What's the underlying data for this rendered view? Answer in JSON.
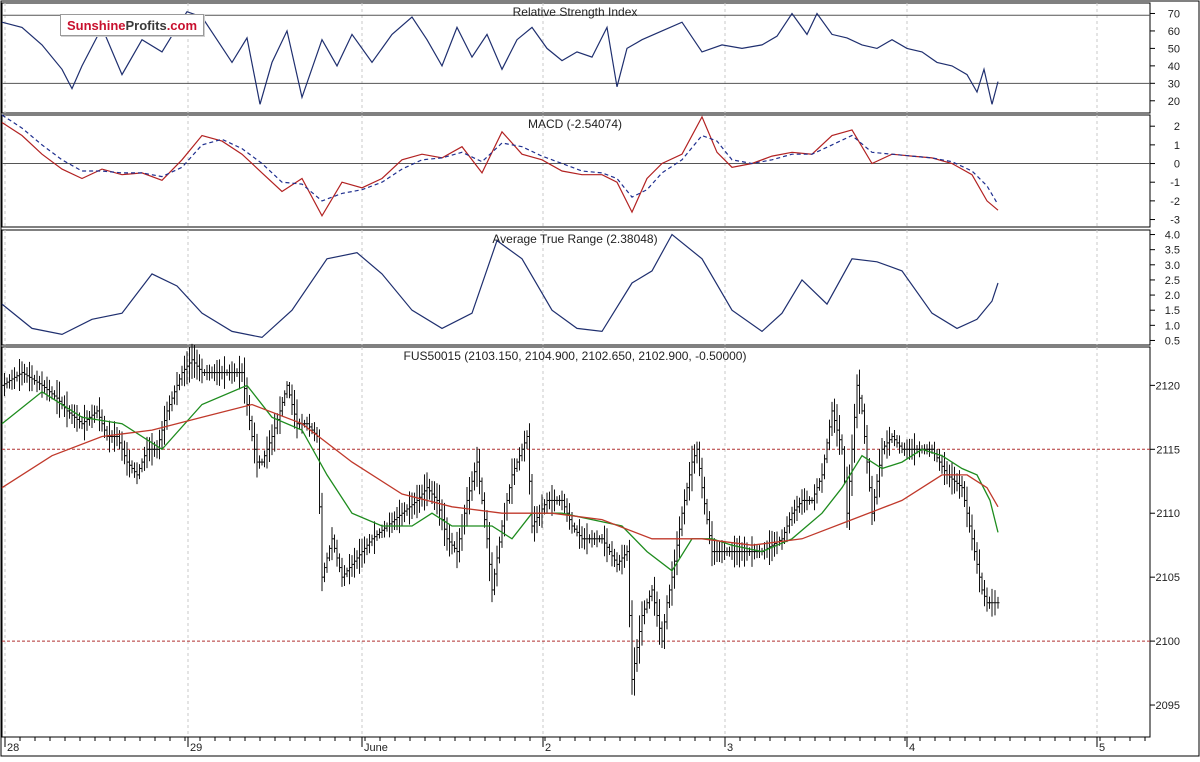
{
  "chart_data": [
    {
      "type": "line",
      "title": "Relative Strength Index",
      "ylim": [
        13,
        76
      ],
      "y_ticks": [
        "70",
        "60",
        "50",
        "40",
        "30",
        "20"
      ],
      "y_tick_values": [
        70,
        60,
        50,
        40,
        30,
        20
      ],
      "reference_lines": [
        69,
        30
      ],
      "series": [
        {
          "x": [
            0,
            20,
            40,
            60,
            70,
            80,
            100,
            120,
            140,
            160,
            175,
            185,
            200,
            215,
            230,
            245,
            258,
            270,
            285,
            300,
            320,
            335,
            350,
            370,
            390,
            410,
            425,
            440,
            455,
            470,
            485,
            500,
            515,
            530,
            545,
            560,
            575,
            590,
            605,
            615,
            625,
            640,
            660,
            680,
            700,
            720,
            740,
            760,
            775,
            790,
            805,
            815,
            830,
            845,
            860,
            875,
            890,
            905,
            920,
            935,
            950,
            965,
            975,
            982,
            990,
            996
          ],
          "values": [
            65,
            62,
            52,
            38,
            27,
            40,
            62,
            35,
            55,
            48,
            62,
            71,
            68,
            55,
            42,
            56,
            18,
            42,
            60,
            22,
            55,
            40,
            58,
            42,
            58,
            68,
            55,
            40,
            62,
            45,
            58,
            38,
            55,
            62,
            50,
            43,
            48,
            45,
            62,
            28,
            50,
            55,
            60,
            65,
            48,
            52,
            50,
            52,
            57,
            70,
            58,
            70,
            58,
            56,
            52,
            50,
            55,
            50,
            48,
            42,
            40,
            35,
            25,
            38,
            18,
            31
          ]
        }
      ]
    },
    {
      "type": "line",
      "title": "MACD (-2.54074)",
      "ylim": [
        -3.4,
        2.6
      ],
      "y_ticks": [
        "2",
        "1",
        "0",
        "-1",
        "-2",
        "-3"
      ],
      "y_tick_values": [
        2,
        1,
        0,
        -1,
        -2,
        -3
      ],
      "reference_lines": [
        0
      ],
      "series": [
        {
          "color": "#b22222",
          "x": [
            0,
            20,
            40,
            60,
            80,
            100,
            120,
            140,
            160,
            180,
            200,
            220,
            240,
            260,
            280,
            300,
            320,
            340,
            360,
            380,
            400,
            420,
            440,
            460,
            480,
            500,
            520,
            540,
            560,
            580,
            600,
            615,
            630,
            645,
            660,
            680,
            700,
            715,
            730,
            750,
            770,
            790,
            810,
            830,
            850,
            870,
            890,
            910,
            930,
            950,
            970,
            985,
            996
          ],
          "values": [
            2.2,
            1.5,
            0.5,
            -0.3,
            -0.8,
            -0.3,
            -0.6,
            -0.5,
            -0.9,
            0.2,
            1.5,
            1.2,
            0.5,
            -0.5,
            -1.5,
            -0.8,
            -2.8,
            -1.0,
            -1.3,
            -0.8,
            0.2,
            0.5,
            0.3,
            0.9,
            -0.5,
            1.7,
            0.5,
            0.2,
            -0.4,
            -0.6,
            -0.6,
            -1.0,
            -2.6,
            -0.8,
            0.0,
            0.5,
            2.5,
            0.6,
            -0.2,
            0.0,
            0.4,
            0.6,
            0.5,
            1.5,
            1.8,
            0.0,
            0.5,
            0.4,
            0.3,
            0.0,
            -0.6,
            -2.0,
            -2.5
          ]
        },
        {
          "color": "#1f2f8f",
          "x": [
            0,
            20,
            40,
            60,
            80,
            100,
            120,
            140,
            160,
            180,
            200,
            220,
            240,
            260,
            280,
            300,
            320,
            340,
            360,
            380,
            400,
            420,
            440,
            460,
            480,
            500,
            520,
            540,
            560,
            580,
            600,
            615,
            630,
            645,
            660,
            680,
            700,
            715,
            730,
            750,
            770,
            790,
            810,
            830,
            850,
            870,
            890,
            910,
            930,
            950,
            970,
            985,
            996
          ],
          "values": [
            2.6,
            1.9,
            1.0,
            0.2,
            -0.4,
            -0.4,
            -0.5,
            -0.5,
            -0.7,
            -0.2,
            1.0,
            1.3,
            0.8,
            0.0,
            -1.0,
            -1.1,
            -2.0,
            -1.6,
            -1.4,
            -1.0,
            -0.3,
            0.2,
            0.3,
            0.6,
            0.1,
            1.1,
            0.9,
            0.4,
            0.0,
            -0.4,
            -0.5,
            -0.8,
            -1.8,
            -1.4,
            -0.5,
            0.2,
            1.5,
            1.2,
            0.2,
            0.0,
            0.2,
            0.5,
            0.5,
            1.0,
            1.5,
            0.6,
            0.5,
            0.4,
            0.3,
            0.1,
            -0.4,
            -1.2,
            -2.2
          ]
        }
      ]
    },
    {
      "type": "line",
      "title": "Average True Range (2.38048)",
      "ylim": [
        0.35,
        4.15
      ],
      "y_ticks": [
        "4.0",
        "3.5",
        "3.0",
        "2.5",
        "2.0",
        "1.5",
        "1.0",
        "0.5"
      ],
      "y_tick_values": [
        4.0,
        3.5,
        3.0,
        2.5,
        2.0,
        1.5,
        1.0,
        0.5
      ],
      "series": [
        {
          "x": [
            0,
            30,
            60,
            90,
            120,
            150,
            175,
            200,
            230,
            260,
            290,
            325,
            355,
            380,
            410,
            440,
            470,
            495,
            520,
            550,
            575,
            600,
            630,
            650,
            670,
            700,
            730,
            760,
            780,
            800,
            825,
            850,
            875,
            900,
            930,
            955,
            975,
            990,
            996
          ],
          "values": [
            1.7,
            0.9,
            0.7,
            1.2,
            1.4,
            2.7,
            2.3,
            1.4,
            0.8,
            0.6,
            1.5,
            3.2,
            3.4,
            2.7,
            1.5,
            0.9,
            1.4,
            3.8,
            3.2,
            1.5,
            0.9,
            0.8,
            2.4,
            2.8,
            4.0,
            3.2,
            1.5,
            0.8,
            1.4,
            2.5,
            1.7,
            3.2,
            3.1,
            2.8,
            1.4,
            0.9,
            1.2,
            1.8,
            2.4
          ]
        }
      ]
    },
    {
      "type": "candlestick",
      "title": "FUS50015 (2103.150, 2104.900, 2102.650, 2102.900, -0.50000)",
      "ylim": [
        2092.5,
        2123
      ],
      "y_ticks": [
        "2120",
        "2115",
        "2110",
        "2105",
        "2100",
        "2095"
      ],
      "y_tick_values": [
        2120,
        2115,
        2110,
        2105,
        2100,
        2095
      ],
      "reference_lines": [
        2115,
        2100
      ],
      "x_ticks": [
        "28",
        "29",
        "June",
        "2",
        "3",
        "4",
        "5"
      ],
      "series": [
        {
          "name": "price",
          "x": [
            0,
            20,
            40,
            55,
            65,
            80,
            95,
            105,
            115,
            125,
            135,
            145,
            155,
            165,
            180,
            190,
            200,
            215,
            230,
            240,
            250,
            255,
            260,
            270,
            278,
            285,
            295,
            305,
            315,
            320,
            330,
            340,
            350,
            360,
            370,
            385,
            400,
            415,
            425,
            435,
            445,
            455,
            465,
            475,
            485,
            490,
            500,
            510,
            520,
            525,
            530,
            545,
            560,
            570,
            580,
            600,
            615,
            625,
            630,
            640,
            650,
            660,
            665,
            670,
            680,
            690,
            695,
            700,
            710,
            720,
            740,
            760,
            780,
            790,
            800,
            810,
            820,
            830,
            840,
            845,
            855,
            860,
            870,
            880,
            890,
            900,
            915,
            930,
            945,
            960,
            965,
            975,
            980,
            985,
            990,
            996
          ],
          "values": [
            2120,
            2121,
            2120,
            2119,
            2118,
            2117,
            2118,
            2116,
            2116,
            2114,
            2113,
            2115,
            2115,
            2118,
            2121,
            2122,
            2121,
            2121,
            2121,
            2121,
            2116,
            2114,
            2114,
            2116,
            2118,
            2120,
            2117,
            2117,
            2116,
            2105,
            2108,
            2105,
            2106,
            2107,
            2108,
            2109,
            2110,
            2111,
            2112,
            2111,
            2108,
            2107,
            2111,
            2114,
            2108,
            2104,
            2109,
            2113,
            2115,
            2116,
            2109,
            2111,
            2111,
            2109,
            2108,
            2108,
            2106,
            2107,
            2097,
            2102,
            2104,
            2100,
            2103,
            2105,
            2110,
            2114,
            2115,
            2112,
            2107,
            2107,
            2107,
            2107,
            2108,
            2110,
            2111,
            2111,
            2113,
            2118,
            2115,
            2110,
            2120,
            2118,
            2110,
            2115,
            2116,
            2115,
            2115,
            2115,
            2113,
            2112,
            2110,
            2106,
            2104,
            2103,
            2103,
            2103
          ]
        },
        {
          "name": "ma-fast",
          "color": "#1e8c1e",
          "x": [
            0,
            40,
            80,
            120,
            160,
            200,
            245,
            270,
            300,
            325,
            350,
            380,
            410,
            430,
            450,
            470,
            490,
            510,
            530,
            560,
            590,
            620,
            645,
            670,
            690,
            710,
            730,
            760,
            790,
            820,
            840,
            860,
            880,
            900,
            920,
            940,
            960,
            975,
            988,
            996
          ],
          "values": [
            2117,
            2119.5,
            2117.5,
            2117,
            2115,
            2118.5,
            2120,
            2117.5,
            2116.5,
            2113,
            2110,
            2109,
            2109,
            2110,
            2109,
            2109,
            2109,
            2108,
            2110,
            2110,
            2109.5,
            2109,
            2107,
            2105.5,
            2108,
            2108,
            2107.5,
            2107,
            2108,
            2110,
            2112,
            2114.5,
            2113.5,
            2114,
            2115,
            2114.5,
            2113.5,
            2113,
            2111,
            2108.5
          ]
        },
        {
          "name": "ma-slow",
          "color": "#c0392b",
          "x": [
            0,
            50,
            100,
            150,
            200,
            250,
            300,
            350,
            400,
            450,
            500,
            550,
            600,
            650,
            700,
            750,
            800,
            850,
            900,
            940,
            965,
            985,
            996
          ],
          "values": [
            2112,
            2114.5,
            2116,
            2116.5,
            2117.5,
            2118.5,
            2117,
            2114,
            2111.5,
            2110.5,
            2110,
            2110,
            2109.5,
            2108,
            2108,
            2107.5,
            2108,
            2109.5,
            2111,
            2113,
            2113,
            2112,
            2110.5
          ]
        }
      ]
    }
  ]
}
